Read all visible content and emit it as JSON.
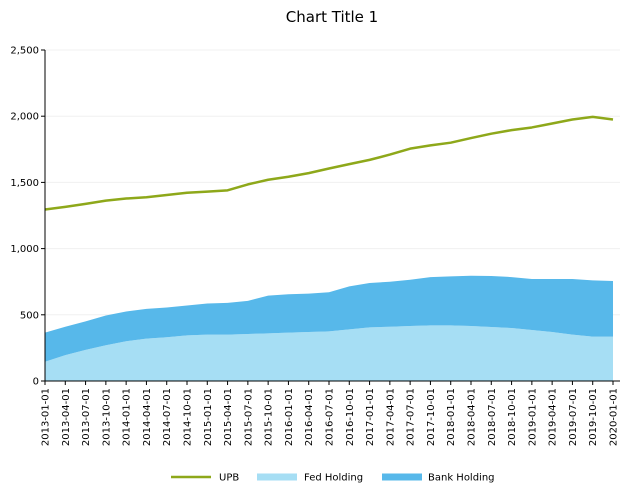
{
  "chart_data": {
    "type": "area",
    "title": "Chart Title 1",
    "xlabel": "",
    "ylabel": "",
    "ylim": [
      0,
      2500
    ],
    "yticks": [
      "0",
      "500",
      "1,000",
      "1,500",
      "2,000",
      "2,500"
    ],
    "ytick_values": [
      0,
      500,
      1000,
      1500,
      2000,
      2500
    ],
    "grid": true,
    "legend_position": "bottom",
    "categories": [
      "2013-01-01",
      "2013-04-01",
      "2013-07-01",
      "2013-10-01",
      "2014-01-01",
      "2014-04-01",
      "2014-07-01",
      "2014-10-01",
      "2015-01-01",
      "2015-04-01",
      "2015-07-01",
      "2015-10-01",
      "2016-01-01",
      "2016-04-01",
      "2016-07-01",
      "2016-10-01",
      "2017-01-01",
      "2017-04-01",
      "2017-07-01",
      "2017-10-01",
      "2018-01-01",
      "2018-04-01",
      "2018-07-01",
      "2018-10-01",
      "2019-01-01",
      "2019-04-01",
      "2019-07-01",
      "2019-10-01",
      "2020-01-01"
    ],
    "series": [
      {
        "name": "UPB",
        "kind": "line",
        "color": "#8ea81a",
        "values": [
          1295,
          1315,
          1338,
          1362,
          1378,
          1388,
          1405,
          1422,
          1430,
          1440,
          1485,
          1520,
          1543,
          1570,
          1605,
          1638,
          1670,
          1710,
          1755,
          1780,
          1800,
          1835,
          1868,
          1895,
          1915,
          1945,
          1975,
          1995,
          1975
        ]
      },
      {
        "name": "Fed Holding",
        "kind": "stacked-area",
        "color": "#a6def4",
        "values": [
          145,
          195,
          235,
          270,
          300,
          320,
          330,
          345,
          350,
          350,
          355,
          360,
          365,
          370,
          375,
          390,
          405,
          410,
          415,
          420,
          420,
          415,
          408,
          400,
          385,
          370,
          350,
          335,
          335
        ]
      },
      {
        "name": "Bank Holding",
        "kind": "stacked-area",
        "color": "#57b8ea",
        "values": [
          220,
          215,
          215,
          225,
          225,
          225,
          225,
          225,
          235,
          240,
          250,
          285,
          290,
          290,
          295,
          325,
          335,
          340,
          350,
          365,
          370,
          380,
          385,
          385,
          385,
          400,
          420,
          425,
          420
        ]
      }
    ]
  }
}
